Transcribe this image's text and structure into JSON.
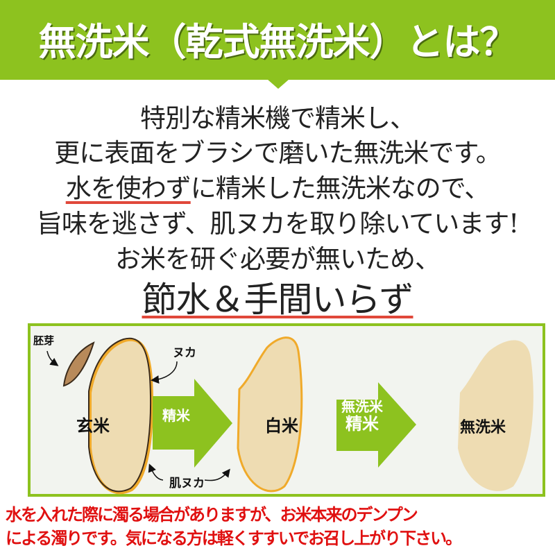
{
  "header": {
    "title": "無洗米（乾式無洗米）とは？"
  },
  "body_lines": [
    "特別な精米機で精米し、",
    "更に表面をブラシで磨いた無洗米です。",
    {
      "underlined": "水を使わず",
      "rest": "に精米した無洗米なので、"
    },
    "旨味を逃さず、肌ヌカを取り除いています!",
    "お米を研ぐ必要が無いため、",
    "節水＆手間いらず"
  ],
  "diagram": {
    "labels": {
      "germ": "胚芽",
      "bran": "ヌカ",
      "skin_bran": "肌ヌカ",
      "brown_rice": "玄米",
      "white_rice": "白米",
      "musenmai": "無洗米"
    },
    "arrows": [
      {
        "label": "精米"
      },
      {
        "line1": "無洗米",
        "line2": "精米"
      }
    ],
    "colors": {
      "accent_green": "#8dc21f",
      "rice_fill": "#eedcb2",
      "rice_outline": "#f0aa2a",
      "germ": "#b88a5a"
    }
  },
  "note": {
    "line1": "水を入れた際に濁る場合がありますが、お米本来のデンプン",
    "line2": "による濁りです。気になる方は軽くすすいでお召し上がり下さい。"
  }
}
